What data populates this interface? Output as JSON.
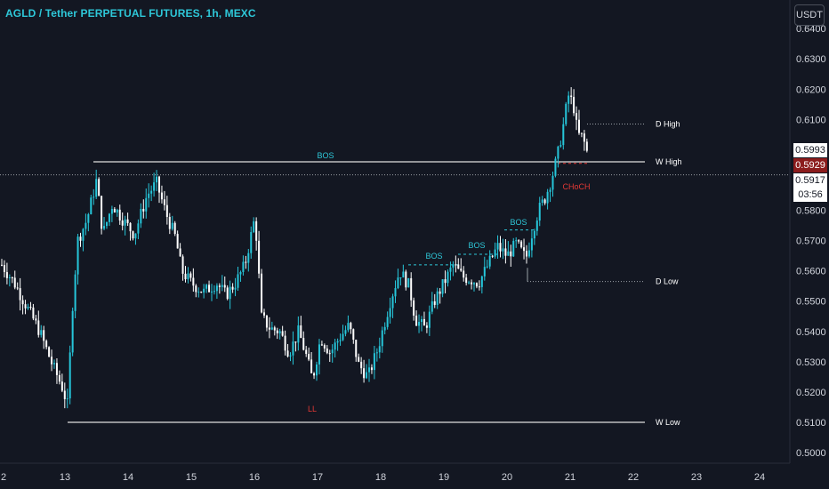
{
  "title": "AGLD / Tether PERPETUAL FUTURES, 1h, MEXC",
  "currency_button": "USDT",
  "price_labels": {
    "upper": "0.5993",
    "current": "0.5929",
    "last": "0.5917",
    "countdown": "03:56"
  },
  "colors": {
    "background": "#131722",
    "bullish": "#26c6da",
    "bearish": "#ffffff",
    "text": "#d1d4dc",
    "bos": "#2ec7d8",
    "red_label": "#e53935",
    "current_price_bg": "#8b1c1c"
  },
  "chart_data": {
    "type": "candlestick",
    "y_ticks": [
      "0.6400",
      "0.6300",
      "0.6200",
      "0.6100",
      "0.6000",
      "0.5900",
      "0.5800",
      "0.5700",
      "0.5600",
      "0.5500",
      "0.5400",
      "0.5300",
      "0.5200",
      "0.5100",
      "0.5000"
    ],
    "ylim": [
      0.4965,
      0.6465
    ],
    "x_ticks": [
      "2",
      "13",
      "14",
      "15",
      "16",
      "17",
      "18",
      "19",
      "20",
      "21",
      "22",
      "23",
      "24"
    ],
    "annotations": {
      "d_high": {
        "label": "D High",
        "price": 0.6085
      },
      "w_high": {
        "label": "W High",
        "price": 0.596
      },
      "d_low": {
        "label": "D Low",
        "price": 0.5565
      },
      "w_low": {
        "label": "W Low",
        "price": 0.51
      },
      "bos_labels": [
        {
          "text": "BOS",
          "day": 14.78,
          "price": 0.596
        },
        {
          "text": "BOS",
          "day": 18.8,
          "price": 0.562
        },
        {
          "text": "BOS",
          "day": 19.46,
          "price": 0.5655
        },
        {
          "text": "BOS",
          "day": 20.2,
          "price": 0.5735
        }
      ],
      "choch": {
        "text": "CHoCH",
        "day": 21.1,
        "price": 0.5955
      },
      "ll": {
        "text": "LL",
        "day": 16.88,
        "price": 0.521
      }
    },
    "anchors": [
      [
        12.0,
        0.562
      ],
      [
        12.2,
        0.556
      ],
      [
        12.4,
        0.548
      ],
      [
        12.6,
        0.54
      ],
      [
        12.8,
        0.529
      ],
      [
        12.95,
        0.522
      ],
      [
        13.05,
        0.515
      ],
      [
        13.1,
        0.543
      ],
      [
        13.2,
        0.57
      ],
      [
        13.35,
        0.577
      ],
      [
        13.5,
        0.59
      ],
      [
        13.6,
        0.572
      ],
      [
        13.75,
        0.582
      ],
      [
        13.95,
        0.576
      ],
      [
        14.1,
        0.572
      ],
      [
        14.3,
        0.585
      ],
      [
        14.45,
        0.589
      ],
      [
        14.6,
        0.579
      ],
      [
        14.75,
        0.571
      ],
      [
        14.85,
        0.56
      ],
      [
        15.0,
        0.556
      ],
      [
        15.2,
        0.553
      ],
      [
        15.4,
        0.556
      ],
      [
        15.55,
        0.552
      ],
      [
        15.7,
        0.556
      ],
      [
        15.85,
        0.562
      ],
      [
        15.95,
        0.572
      ],
      [
        16.0,
        0.577
      ],
      [
        16.05,
        0.568
      ],
      [
        16.1,
        0.545
      ],
      [
        16.25,
        0.541
      ],
      [
        16.4,
        0.54
      ],
      [
        16.55,
        0.533
      ],
      [
        16.7,
        0.54
      ],
      [
        16.82,
        0.532
      ],
      [
        16.92,
        0.524
      ],
      [
        17.05,
        0.538
      ],
      [
        17.2,
        0.533
      ],
      [
        17.35,
        0.538
      ],
      [
        17.5,
        0.542
      ],
      [
        17.65,
        0.529
      ],
      [
        17.8,
        0.525
      ],
      [
        17.95,
        0.534
      ],
      [
        18.05,
        0.542
      ],
      [
        18.15,
        0.55
      ],
      [
        18.3,
        0.56
      ],
      [
        18.45,
        0.555
      ],
      [
        18.55,
        0.544
      ],
      [
        18.7,
        0.541
      ],
      [
        18.85,
        0.55
      ],
      [
        19.0,
        0.556
      ],
      [
        19.15,
        0.562
      ],
      [
        19.3,
        0.558
      ],
      [
        19.45,
        0.557
      ],
      [
        19.55,
        0.556
      ],
      [
        19.7,
        0.562
      ],
      [
        19.85,
        0.568
      ],
      [
        20.0,
        0.565
      ],
      [
        20.15,
        0.569
      ],
      [
        20.3,
        0.564
      ],
      [
        20.4,
        0.573
      ],
      [
        20.5,
        0.58
      ],
      [
        20.6,
        0.584
      ],
      [
        20.7,
        0.59
      ],
      [
        20.8,
        0.598
      ],
      [
        20.9,
        0.609
      ],
      [
        20.97,
        0.618
      ],
      [
        21.05,
        0.615
      ],
      [
        21.12,
        0.605
      ],
      [
        21.2,
        0.604
      ],
      [
        21.27,
        0.599
      ],
      [
        21.3,
        0.5917
      ]
    ]
  }
}
